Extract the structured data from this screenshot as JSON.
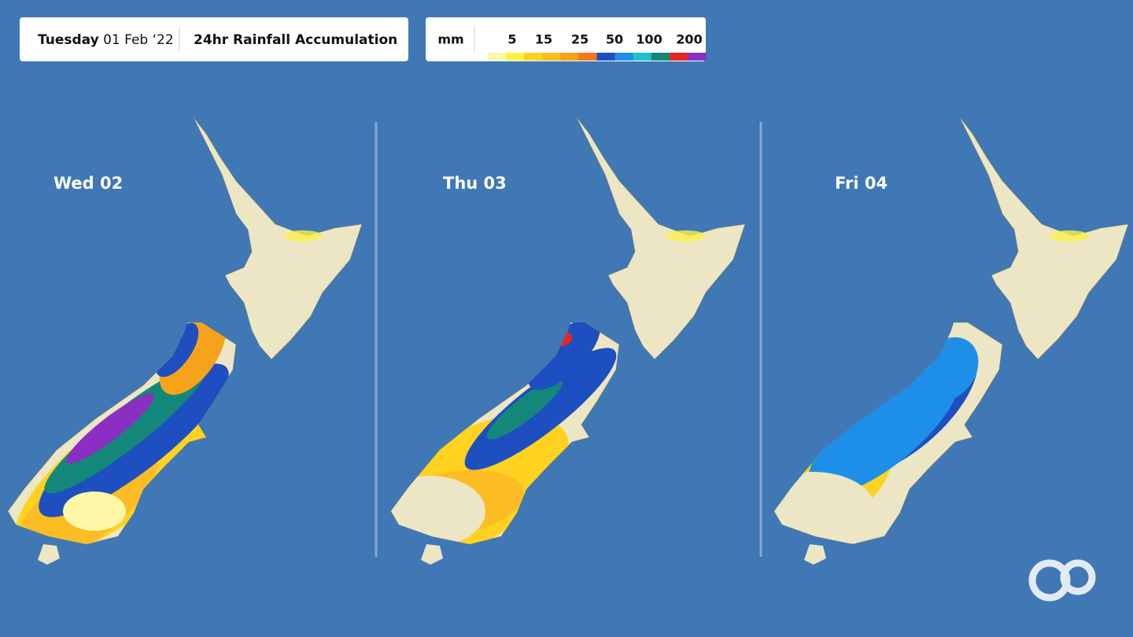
{
  "header": {
    "day": "Tuesday",
    "date": "01 Feb ‘22",
    "title": "24hr Rainfall Accumulation"
  },
  "legend": {
    "unit": "mm",
    "labels": [
      5,
      15,
      25,
      50,
      100,
      200
    ],
    "colors": [
      "#fff7a8",
      "#fff04a",
      "#ffd21f",
      "#fbbd23",
      "#f7a21b",
      "#f27a1a",
      "#1d4fc0",
      "#1e8fe8",
      "#1fc0c8",
      "#13887a",
      "#e8261f",
      "#8a2fc2"
    ]
  },
  "panels": [
    {
      "label": "Wed 02"
    },
    {
      "label": "Thu 03"
    },
    {
      "label": "Fri 04"
    }
  ]
}
